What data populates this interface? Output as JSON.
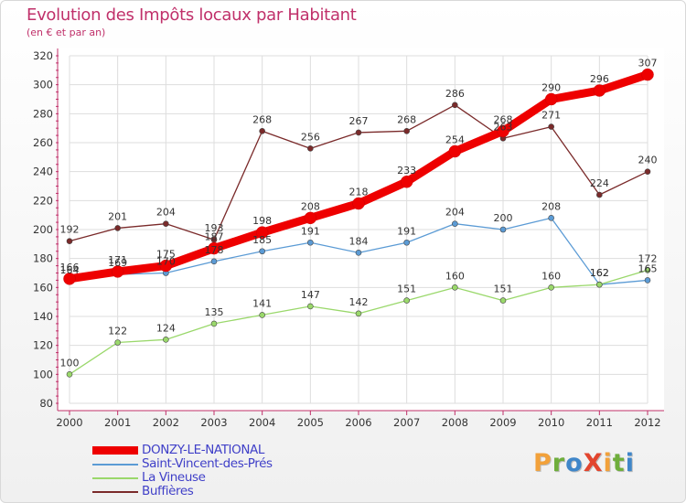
{
  "header": {
    "title": "Evolution des Impôts locaux par Habitant",
    "subtitle": "(en € et par an)"
  },
  "brand": {
    "text": "ProXiti",
    "letters": [
      {
        "char": "P",
        "color": "#f2a13a"
      },
      {
        "char": "r",
        "color": "#6fae3c"
      },
      {
        "char": "o",
        "color": "#3f86c9"
      },
      {
        "char": "X",
        "color": "#e2452e"
      },
      {
        "char": "i",
        "color": "#f2a13a"
      },
      {
        "char": "t",
        "color": "#6fae3c"
      },
      {
        "char": "i",
        "color": "#3f86c9"
      }
    ]
  },
  "chart_data": {
    "type": "line",
    "title": "Evolution des Impôts locaux par Habitant",
    "subtitle": "(en € et par an)",
    "xlabel": "",
    "ylabel": "",
    "x": [
      "2000",
      "2001",
      "2002",
      "2003",
      "2004",
      "2005",
      "2006",
      "2007",
      "2008",
      "2009",
      "2010",
      "2011",
      "2012"
    ],
    "y_ticks": [
      "80",
      "100",
      "120",
      "140",
      "160",
      "180",
      "200",
      "220",
      "240",
      "260",
      "280",
      "300",
      "320"
    ],
    "ylim": [
      80,
      320
    ],
    "grid": true,
    "legend_position": "bottom-left",
    "series": [
      {
        "name": "DONZY-LE-NATIONAL",
        "color": "#ee0000",
        "values": [
          166,
          171,
          175,
          187,
          198,
          208,
          218,
          233,
          254,
          268,
          290,
          296,
          307
        ],
        "labels": [
          "166",
          "171",
          "175",
          "187",
          "198",
          "208",
          "218",
          "233",
          "254",
          "268",
          "290",
          "296",
          "307"
        ]
      },
      {
        "name": "Saint-Vincent-des-Prés",
        "color": "#5b9bd5",
        "values": [
          164,
          169,
          170,
          178,
          185,
          191,
          184,
          191,
          204,
          200,
          208,
          162,
          165
        ],
        "labels": [
          "164",
          "169",
          "170",
          "178",
          "185",
          "191",
          "184",
          "191",
          "204",
          "200",
          "208",
          "162",
          "165"
        ]
      },
      {
        "name": "La Vineuse",
        "color": "#9ad86b",
        "values": [
          100,
          122,
          124,
          135,
          141,
          147,
          142,
          151,
          160,
          151,
          160,
          162,
          172
        ],
        "labels": [
          "100",
          "122",
          "124",
          "135",
          "141",
          "147",
          "142",
          "151",
          "160",
          "151",
          "160",
          "162",
          "172"
        ]
      },
      {
        "name": "Buffières",
        "color": "#7a2a2a",
        "values": [
          192,
          201,
          204,
          193,
          268,
          256,
          267,
          268,
          286,
          263,
          271,
          224,
          240
        ],
        "labels": [
          "192",
          "201",
          "204",
          "193",
          "268",
          "256",
          "267",
          "268",
          "286",
          "263",
          "271",
          "224",
          "240"
        ]
      }
    ]
  }
}
